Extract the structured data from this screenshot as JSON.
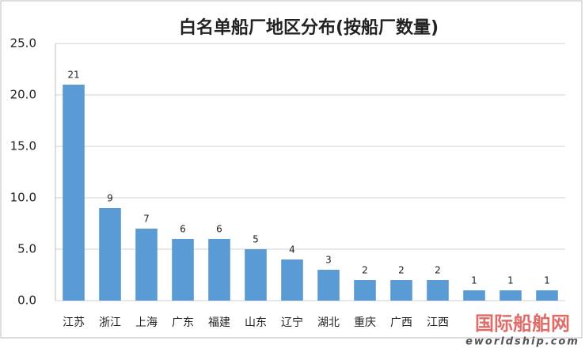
{
  "chart_data": {
    "type": "bar",
    "title": "白名单船厂地区分布(按船厂数量)",
    "categories": [
      "江苏",
      "浙江",
      "上海",
      "广东",
      "福建",
      "山东",
      "辽宁",
      "湖北",
      "重庆",
      "广西",
      "江西",
      null,
      null,
      null
    ],
    "values": [
      21,
      9,
      7,
      6,
      6,
      5,
      4,
      3,
      2,
      2,
      2,
      1,
      1,
      1
    ],
    "color": "#5b9bd5",
    "ylim": [
      0,
      25
    ],
    "yticks": [
      {
        "value": 0,
        "label": "0.0"
      },
      {
        "value": 5,
        "label": "5.0"
      },
      {
        "value": 10,
        "label": "10.0"
      },
      {
        "value": 15,
        "label": "15.0"
      },
      {
        "value": 20,
        "label": "20.0"
      },
      {
        "value": 25,
        "label": "25.0"
      }
    ],
    "grid": true,
    "watermark": [
      "国际船舶网",
      "eworldship.com"
    ]
  }
}
